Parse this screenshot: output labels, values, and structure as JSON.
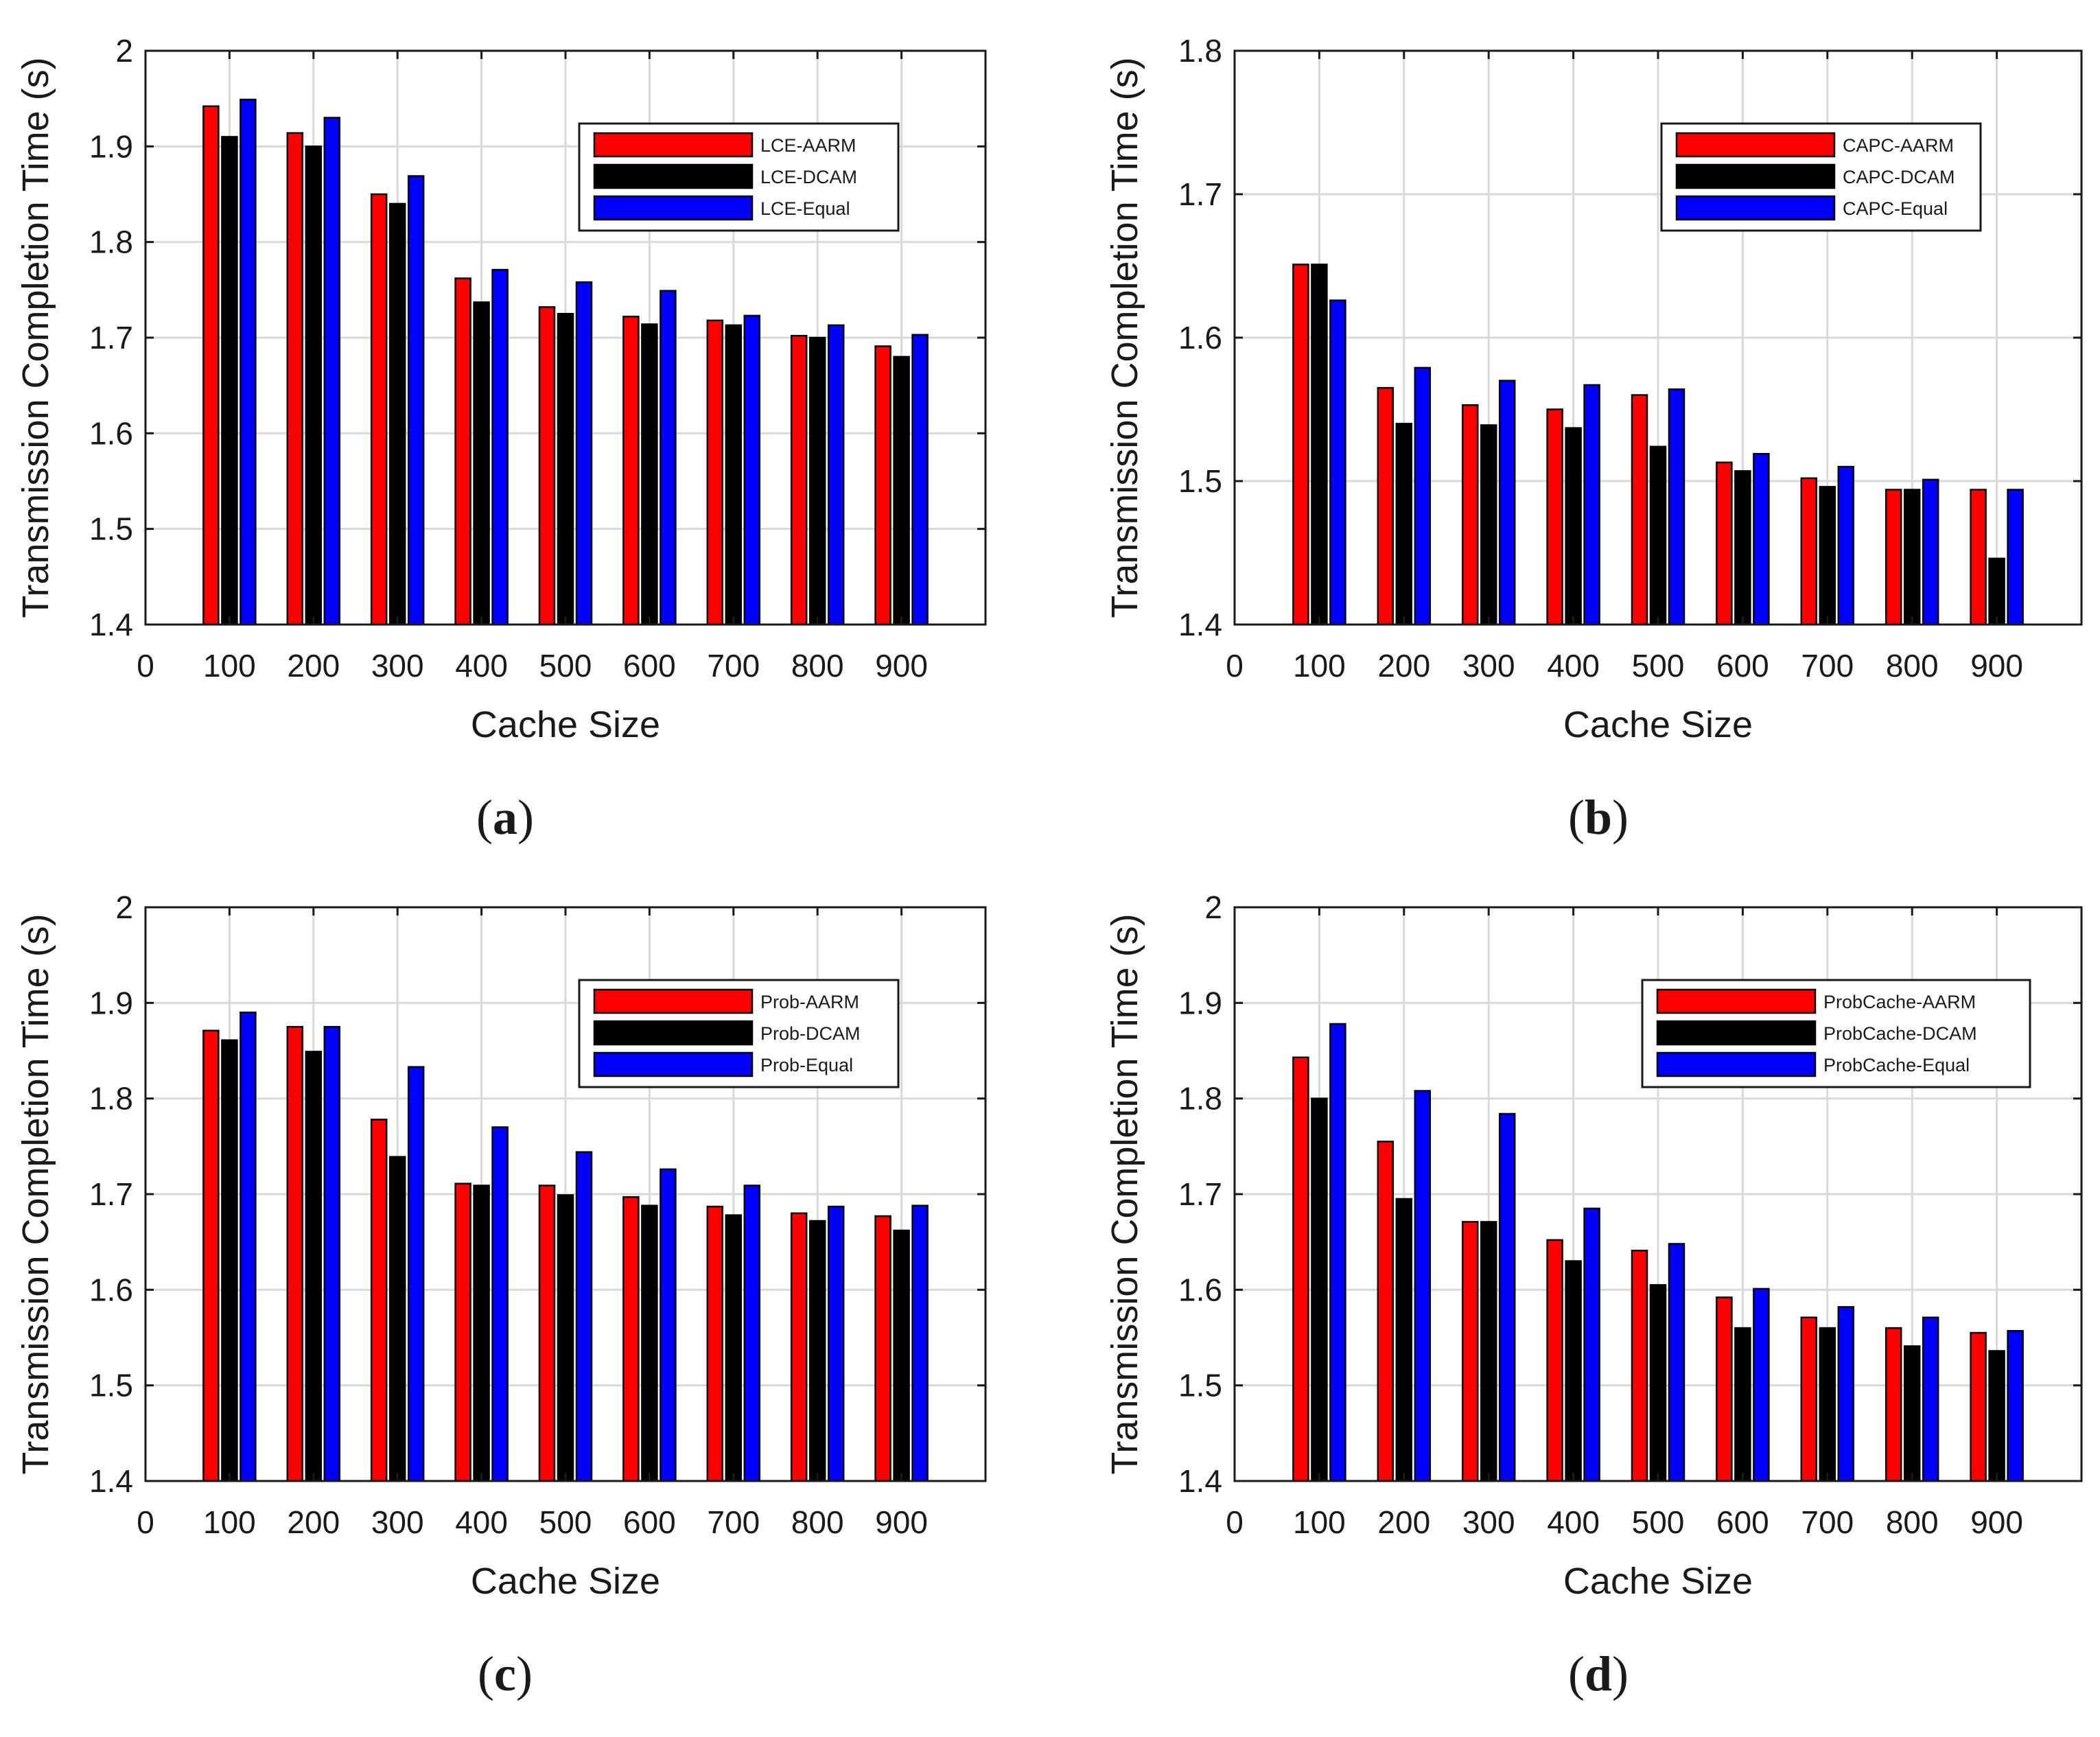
{
  "chart_data": [
    {
      "type": "bar",
      "caption": "a",
      "xlabel": "Cache Size",
      "ylabel": "Transmission Completion Time (s)",
      "xlim": [
        0,
        1000
      ],
      "ylim": [
        1.4,
        2.0
      ],
      "xticks": [
        0,
        100,
        200,
        300,
        400,
        500,
        600,
        700,
        800,
        900
      ],
      "yticks": [
        1.4,
        1.5,
        1.6,
        1.7,
        1.8,
        1.9,
        2.0
      ],
      "ytick_labels": [
        "1.4",
        "1.5",
        "1.6",
        "1.7",
        "1.8",
        "1.9",
        "2"
      ],
      "grid": true,
      "legend_position": "top-right",
      "categories": [
        100,
        200,
        300,
        400,
        500,
        600,
        700,
        800,
        900
      ],
      "series": [
        {
          "name": "LCE-AARM",
          "color": "#ff0000",
          "values": [
            1.942,
            1.914,
            1.85,
            1.762,
            1.732,
            1.722,
            1.718,
            1.702,
            1.691
          ]
        },
        {
          "name": "LCE-DCAM",
          "color": "#000000",
          "values": [
            1.91,
            1.9,
            1.84,
            1.737,
            1.725,
            1.714,
            1.713,
            1.7,
            1.68
          ]
        },
        {
          "name": "LCE-Equal",
          "color": "#0000ff",
          "values": [
            1.949,
            1.93,
            1.869,
            1.771,
            1.758,
            1.749,
            1.723,
            1.713,
            1.703
          ]
        }
      ]
    },
    {
      "type": "bar",
      "caption": "b",
      "xlabel": "Cache Size",
      "ylabel": "Transmission Completion Time (s)",
      "xlim": [
        0,
        1000
      ],
      "ylim": [
        1.4,
        1.8
      ],
      "xticks": [
        0,
        100,
        200,
        300,
        400,
        500,
        600,
        700,
        800,
        900
      ],
      "yticks": [
        1.4,
        1.5,
        1.6,
        1.7,
        1.8
      ],
      "ytick_labels": [
        "1.4",
        "1.5",
        "1.6",
        "1.7",
        "1.8"
      ],
      "grid": true,
      "legend_position": "top-right",
      "categories": [
        100,
        200,
        300,
        400,
        500,
        600,
        700,
        800,
        900
      ],
      "series": [
        {
          "name": "CAPC-AARM",
          "color": "#ff0000",
          "values": [
            1.651,
            1.565,
            1.553,
            1.55,
            1.56,
            1.513,
            1.502,
            1.494,
            1.494
          ]
        },
        {
          "name": "CAPC-DCAM",
          "color": "#000000",
          "values": [
            1.651,
            1.54,
            1.539,
            1.537,
            1.524,
            1.507,
            1.496,
            1.494,
            1.446
          ]
        },
        {
          "name": "CAPC-Equal",
          "color": "#0000ff",
          "values": [
            1.626,
            1.579,
            1.57,
            1.567,
            1.564,
            1.519,
            1.51,
            1.501,
            1.494
          ]
        }
      ]
    },
    {
      "type": "bar",
      "caption": "c",
      "xlabel": "Cache Size",
      "ylabel": "Transmission Completion Time (s)",
      "xlim": [
        0,
        1000
      ],
      "ylim": [
        1.4,
        2.0
      ],
      "xticks": [
        0,
        100,
        200,
        300,
        400,
        500,
        600,
        700,
        800,
        900
      ],
      "yticks": [
        1.4,
        1.5,
        1.6,
        1.7,
        1.8,
        1.9,
        2.0
      ],
      "ytick_labels": [
        "1.4",
        "1.5",
        "1.6",
        "1.7",
        "1.8",
        "1.9",
        "2"
      ],
      "grid": true,
      "legend_position": "top-right",
      "categories": [
        100,
        200,
        300,
        400,
        500,
        600,
        700,
        800,
        900
      ],
      "series": [
        {
          "name": "Prob-AARM",
          "color": "#ff0000",
          "values": [
            1.871,
            1.875,
            1.778,
            1.711,
            1.709,
            1.697,
            1.687,
            1.68,
            1.677
          ]
        },
        {
          "name": "Prob-DCAM",
          "color": "#000000",
          "values": [
            1.861,
            1.849,
            1.739,
            1.709,
            1.699,
            1.688,
            1.678,
            1.672,
            1.662
          ]
        },
        {
          "name": "Prob-Equal",
          "color": "#0000ff",
          "values": [
            1.89,
            1.875,
            1.833,
            1.77,
            1.744,
            1.726,
            1.709,
            1.687,
            1.688
          ]
        }
      ]
    },
    {
      "type": "bar",
      "caption": "d",
      "xlabel": "Cache Size",
      "ylabel": "Transmission Completion Time (s)",
      "xlim": [
        0,
        1000
      ],
      "ylim": [
        1.4,
        2.0
      ],
      "xticks": [
        0,
        100,
        200,
        300,
        400,
        500,
        600,
        700,
        800,
        900
      ],
      "yticks": [
        1.4,
        1.5,
        1.6,
        1.7,
        1.8,
        1.9,
        2.0
      ],
      "ytick_labels": [
        "1.4",
        "1.5",
        "1.6",
        "1.7",
        "1.8",
        "1.9",
        "2"
      ],
      "grid": true,
      "legend_position": "top-right",
      "categories": [
        100,
        200,
        300,
        400,
        500,
        600,
        700,
        800,
        900
      ],
      "series": [
        {
          "name": "ProbCache-AARM",
          "color": "#ff0000",
          "values": [
            1.843,
            1.755,
            1.671,
            1.652,
            1.641,
            1.592,
            1.571,
            1.56,
            1.555
          ]
        },
        {
          "name": "ProbCache-DCAM",
          "color": "#000000",
          "values": [
            1.8,
            1.695,
            1.671,
            1.63,
            1.605,
            1.56,
            1.56,
            1.541,
            1.536
          ]
        },
        {
          "name": "ProbCache-Equal",
          "color": "#0000ff",
          "values": [
            1.878,
            1.808,
            1.784,
            1.685,
            1.648,
            1.601,
            1.582,
            1.571,
            1.557
          ]
        }
      ]
    }
  ]
}
